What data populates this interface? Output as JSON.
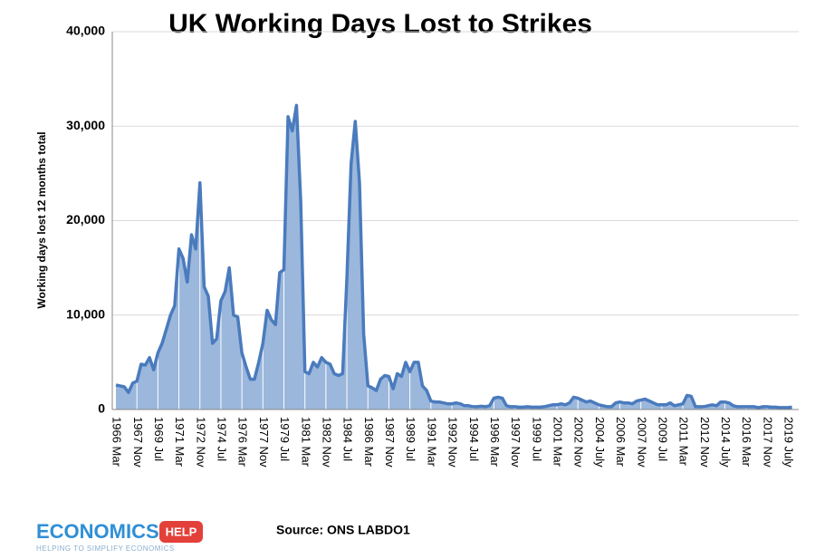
{
  "chart_data": {
    "type": "area",
    "title": "UK Working Days Lost to Strikes",
    "y_label": "Working days lost 12 months total",
    "source": "Source: ONS LABDO1",
    "logo": {
      "word1": "ECONOMICS",
      "word2": "HELP",
      "tagline": "HELPING TO SIMPLIFY ECONOMICS"
    },
    "color": "#4a7bbd",
    "fill": "#9bb7dc",
    "ylim": [
      0,
      40000
    ],
    "yticks": [
      0,
      {
        "value": 10000,
        "label": "10,000"
      },
      {
        "value": 20000,
        "label": "20,000"
      },
      {
        "value": 30000,
        "label": "30,000"
      },
      {
        "value": 40000,
        "label": "40,000"
      }
    ],
    "grid": true,
    "categories": [
      "1966 Mar",
      null,
      null,
      null,
      null,
      "1967 Nov",
      null,
      null,
      null,
      null,
      "1969 Jul",
      null,
      null,
      null,
      null,
      "1971 Mar",
      null,
      null,
      null,
      null,
      "1972 Nov",
      null,
      null,
      null,
      null,
      "1974 Jul",
      null,
      null,
      null,
      null,
      "1976 Mar",
      null,
      null,
      null,
      null,
      "1977 Nov",
      null,
      null,
      null,
      null,
      "1979 Jul",
      null,
      null,
      null,
      null,
      "1981 Mar",
      null,
      null,
      null,
      null,
      "1982 Nov",
      null,
      null,
      null,
      null,
      "1984 Jul",
      null,
      null,
      null,
      null,
      "1986 Mar",
      null,
      null,
      null,
      null,
      "1987 Nov",
      null,
      null,
      null,
      null,
      "1989 Jul",
      null,
      null,
      null,
      null,
      "1991 Mar",
      null,
      null,
      null,
      null,
      "1992 Nov",
      null,
      null,
      null,
      null,
      "1994 Jul",
      null,
      null,
      null,
      null,
      "1996 Mar",
      null,
      null,
      null,
      null,
      "1997 Nov",
      null,
      null,
      null,
      null,
      "1999 Jul",
      null,
      null,
      null,
      null,
      "2001 Mar",
      null,
      null,
      null,
      null,
      "2002 Nov",
      null,
      null,
      null,
      null,
      "2004 July",
      null,
      null,
      null,
      null,
      "2006 Mar",
      null,
      null,
      null,
      null,
      "2007 Nov",
      null,
      null,
      null,
      null,
      "2009 Jul",
      null,
      null,
      null,
      null,
      "2011 Mar",
      null,
      null,
      null,
      null,
      "2012 Nov",
      null,
      null,
      null,
      null,
      "2014 July",
      null,
      null,
      null,
      null,
      "2016 Mar",
      null,
      null,
      null,
      null,
      "2017 Nov",
      null,
      null,
      null,
      null,
      "2019 July",
      null
    ],
    "values": [
      2600,
      2500,
      2400,
      1800,
      2800,
      3000,
      4800,
      4700,
      5500,
      4200,
      6000,
      7000,
      8500,
      10000,
      11000,
      17000,
      16000,
      13500,
      18500,
      17000,
      24000,
      13000,
      12000,
      7000,
      7500,
      11500,
      12500,
      15000,
      10000,
      9800,
      6000,
      4500,
      3200,
      3200,
      5000,
      7000,
      10500,
      9500,
      9000,
      14500,
      14800,
      31000,
      29500,
      32200,
      22000,
      4000,
      3800,
      5000,
      4500,
      5500,
      5000,
      4800,
      3800,
      3600,
      3800,
      14000,
      26000,
      30500,
      24000,
      8000,
      2500,
      2300,
      2000,
      3200,
      3600,
      3500,
      2200,
      3800,
      3500,
      5000,
      4000,
      5000,
      5000,
      2500,
      2000,
      900,
      800,
      800,
      700,
      600,
      600,
      700,
      600,
      400,
      400,
      300,
      300,
      350,
      300,
      400,
      1200,
      1300,
      1200,
      400,
      300,
      300,
      250,
      250,
      300,
      250,
      250,
      250,
      300,
      400,
      500,
      500,
      600,
      500,
      700,
      1300,
      1200,
      1000,
      800,
      900,
      700,
      500,
      400,
      300,
      300,
      700,
      800,
      700,
      700,
      600,
      900,
      1000,
      1100,
      900,
      700,
      500,
      500,
      500,
      700,
      400,
      500,
      600,
      1500,
      1400,
      300,
      300,
      300,
      400,
      500,
      400,
      800,
      800,
      700,
      400,
      300,
      300,
      300,
      300,
      300,
      200,
      300,
      300,
      250,
      250,
      200,
      200,
      200,
      250
    ]
  }
}
